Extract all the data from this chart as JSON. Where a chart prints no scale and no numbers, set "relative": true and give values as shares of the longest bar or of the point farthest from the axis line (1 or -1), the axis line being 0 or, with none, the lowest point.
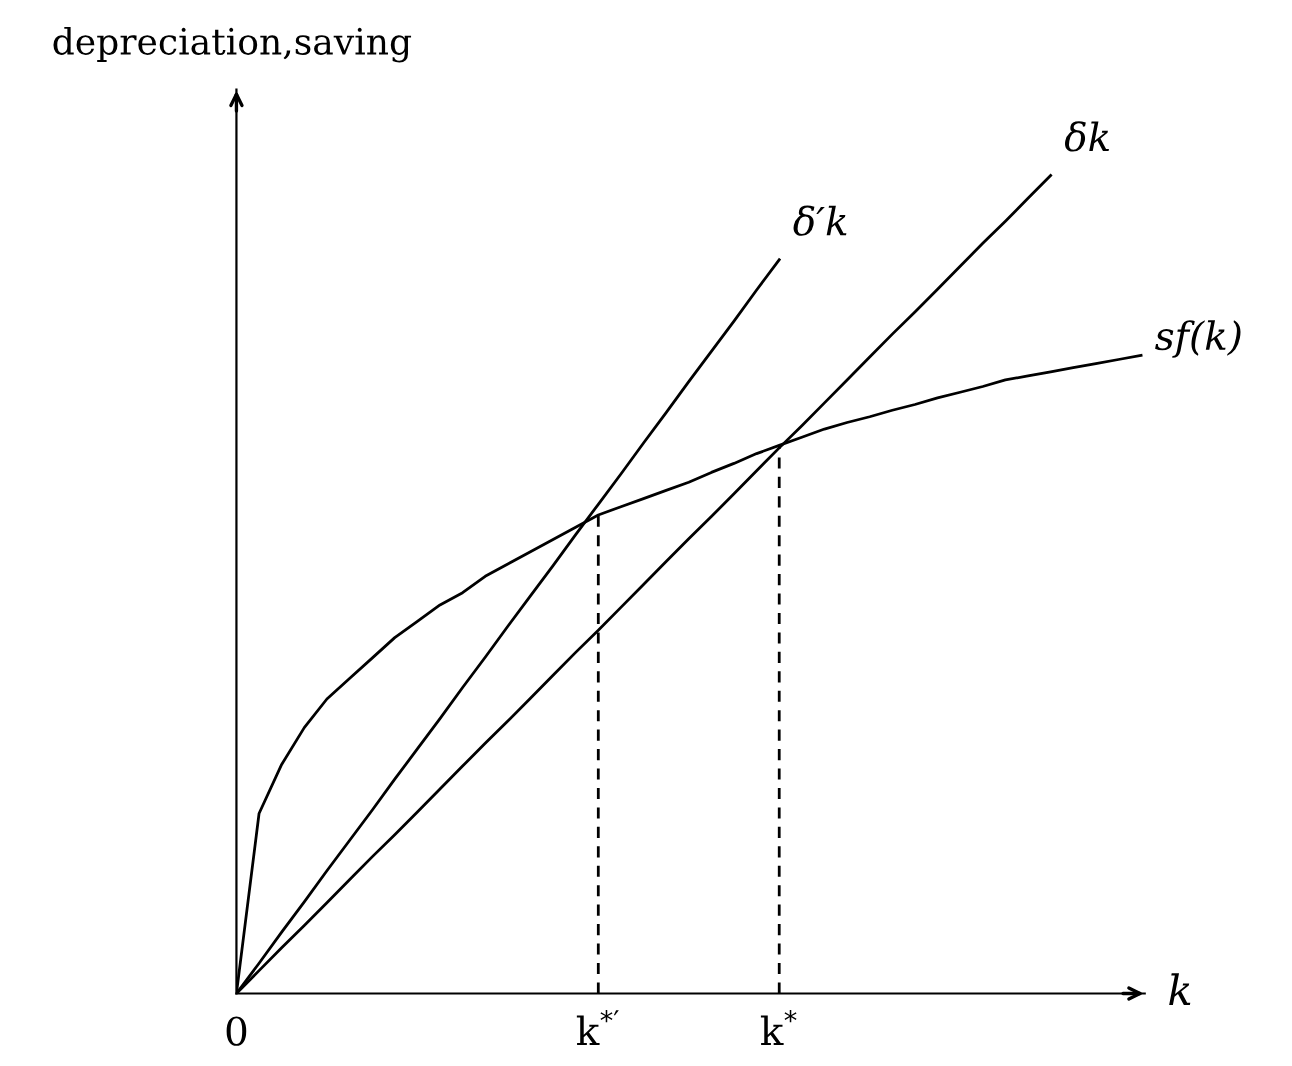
{
  "chart_data": {
    "type": "line",
    "relative": true,
    "xlabel": "k",
    "ylabel": "depreciation,saving",
    "marker": "none",
    "categories": [
      "0",
      null,
      null,
      null,
      null,
      null,
      null,
      null,
      null,
      null,
      null,
      null,
      null,
      null,
      null,
      null,
      "k$^{*′}$",
      null,
      null,
      null,
      null,
      null,
      null,
      null,
      "k$^{*}$",
      null,
      null,
      null,
      null,
      null,
      null,
      null,
      null,
      null,
      null,
      null,
      null,
      null,
      null,
      null,
      null
    ],
    "series": [
      {
        "name": "δ′k",
        "color": "#000000",
        "values": [
          0,
          0.037,
          0.075,
          0.112,
          0.15,
          0.187,
          0.224,
          0.262,
          0.299,
          0.336,
          0.374,
          0.411,
          0.449,
          0.486,
          0.523,
          0.561,
          0.598,
          0.635,
          0.673,
          0.71,
          0.748,
          0.785,
          0.822,
          0.86,
          0.897,
          null,
          null,
          null,
          null,
          null,
          null,
          null,
          null,
          null,
          null,
          null,
          null,
          null,
          null,
          null,
          null
        ]
      },
      {
        "name": "δk",
        "color": "#000000",
        "values": [
          0,
          0.028,
          0.056,
          0.083,
          0.111,
          0.139,
          0.167,
          0.194,
          0.222,
          0.25,
          0.278,
          0.306,
          0.333,
          0.361,
          0.389,
          0.417,
          0.444,
          0.472,
          0.5,
          0.528,
          0.556,
          0.583,
          0.611,
          0.639,
          0.667,
          0.694,
          0.722,
          0.75,
          0.778,
          0.806,
          0.833,
          0.861,
          0.889,
          0.917,
          0.944,
          0.972,
          1.0,
          null,
          null,
          null,
          null
        ]
      },
      {
        "name": "sf(k)",
        "color": "#000000",
        "values": [
          0,
          0.22,
          0.28,
          0.325,
          0.36,
          0.385,
          0.41,
          0.435,
          0.455,
          0.475,
          0.49,
          0.51,
          0.525,
          0.54,
          0.555,
          0.57,
          0.585,
          0.595,
          0.605,
          0.615,
          0.625,
          0.637,
          0.648,
          0.66,
          0.67,
          0.68,
          0.69,
          0.698,
          0.705,
          0.713,
          0.72,
          0.728,
          0.735,
          0.742,
          0.75,
          0.755,
          0.76,
          0.765,
          0.77,
          0.775,
          0.78
        ]
      }
    ],
    "ref_lines": [
      {
        "axis": "x",
        "value": "k$^{*′}$",
        "color": "#000000",
        "line_style": "dashed"
      },
      {
        "axis": "x",
        "value": "k$^{*}$",
        "color": "#000000",
        "line_style": "dashed"
      }
    ]
  }
}
